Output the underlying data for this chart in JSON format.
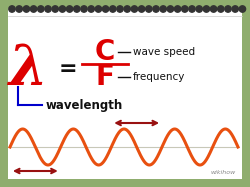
{
  "bg_color": "#8fad6e",
  "card_color": "#ffffff",
  "border_color": "#aaaaaa",
  "wave_color": "#e85010",
  "wave_line_color": "#c8c8b8",
  "arrow_color": "#991111",
  "lambda_color": "#dd0000",
  "cf_color": "#dd0000",
  "fraction_color": "#dd0000",
  "label_color": "#111111",
  "bracket_color": "#0000cc",
  "equals_color": "#111111",
  "spiral_color": "#333333",
  "lambda_text": "λ",
  "equals_text": "=",
  "C_text": "C",
  "F_text": "F",
  "wave_speed_label": "wave speed",
  "frequency_label": "frequency",
  "wavelength_label": "wavelength",
  "wikihow_text": "wikihow"
}
